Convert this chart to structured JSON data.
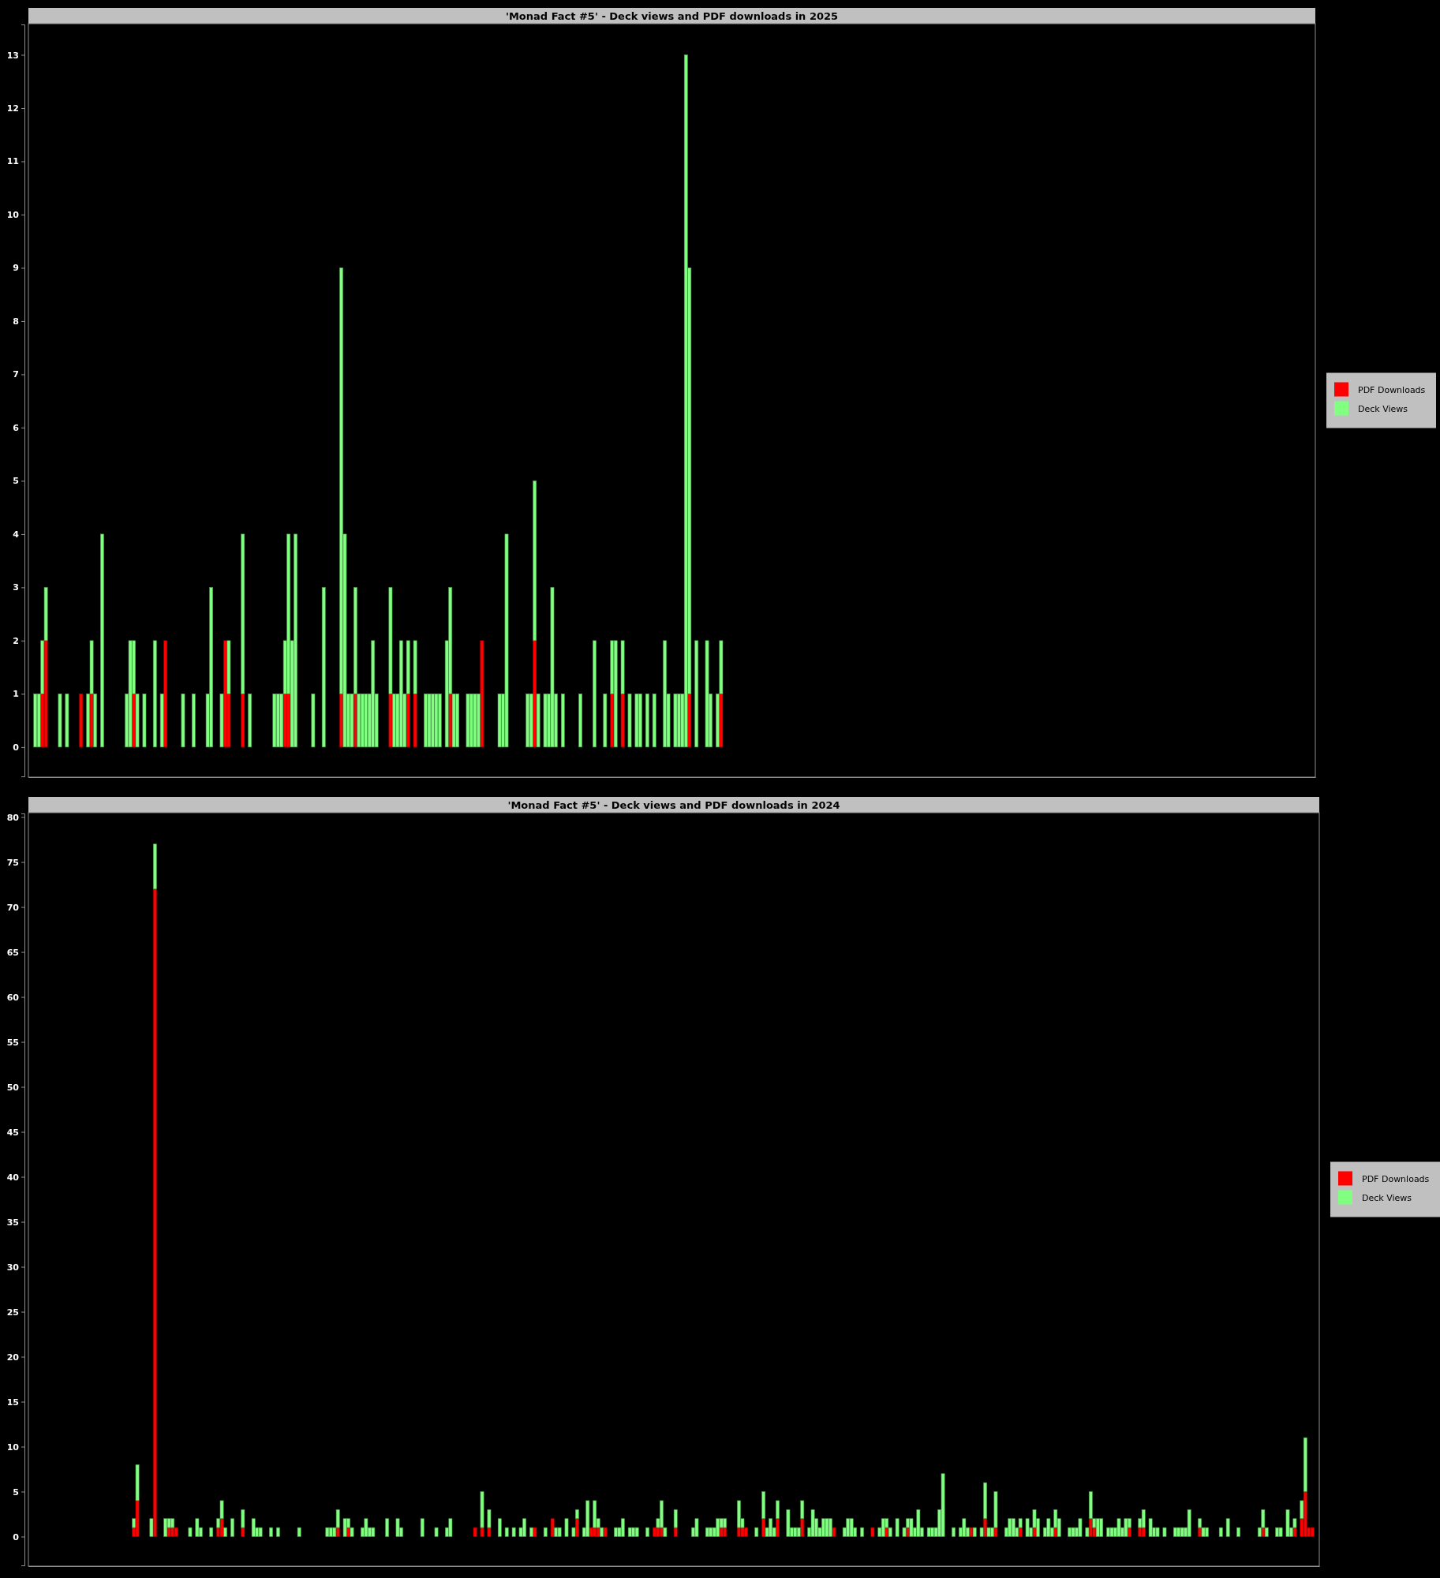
{
  "chart_data": [
    {
      "type": "bar",
      "title": "'Monad Fact #5' - Deck views and PDF downloads in 2025",
      "stacked": true,
      "legend": "right",
      "tick_labels": "y",
      "categories": [
        null,
        null,
        null,
        null,
        null,
        null,
        null,
        null,
        null,
        null,
        null,
        null,
        null,
        null,
        null,
        null,
        null,
        null,
        null,
        null,
        null,
        null,
        null,
        null,
        null,
        null,
        null,
        null,
        null,
        null,
        null,
        null,
        null,
        null,
        null,
        null,
        null,
        null,
        null,
        null,
        null,
        null,
        null,
        null,
        null,
        null,
        null,
        null,
        null,
        null,
        null,
        null,
        null,
        null,
        null,
        null,
        null,
        null,
        null,
        null,
        null,
        null,
        null,
        null,
        null,
        null,
        null,
        null,
        null,
        null,
        null,
        null,
        null,
        null,
        null,
        null,
        null,
        null,
        null,
        null,
        null,
        null,
        null,
        null,
        null,
        null,
        null,
        null,
        null,
        null,
        null,
        null,
        null,
        null,
        null,
        null,
        null,
        null,
        null,
        null,
        null,
        null,
        null,
        null,
        null,
        null,
        null,
        null,
        null,
        null,
        null,
        null,
        null,
        null,
        null,
        null,
        null,
        null,
        null,
        null,
        null,
        null,
        null,
        null,
        null,
        null,
        null,
        null,
        null,
        null,
        null,
        null,
        null,
        null,
        null,
        null,
        null,
        null,
        null,
        null,
        null,
        null,
        null,
        null,
        null,
        null,
        null,
        null,
        null,
        null,
        null,
        null,
        null,
        null,
        null,
        null,
        null,
        null,
        null,
        null,
        null,
        null,
        null,
        null,
        null,
        null,
        null,
        null,
        null,
        null,
        null,
        null,
        null,
        null,
        null,
        null,
        null,
        null,
        null,
        null,
        null,
        null,
        null,
        null,
        null,
        null,
        null,
        null,
        null,
        null,
        null,
        null,
        null,
        null,
        null,
        null,
        null,
        null,
        null,
        null,
        null,
        null,
        null,
        null,
        null,
        null,
        null,
        null,
        null,
        null,
        null,
        null,
        null,
        null,
        null,
        null,
        null,
        null,
        null,
        null,
        null,
        null,
        null,
        null,
        null,
        null,
        null,
        null,
        null,
        null,
        null,
        null,
        null,
        null,
        null,
        null,
        null,
        null,
        null,
        null,
        null,
        null,
        null,
        null,
        null,
        null,
        null,
        null,
        null,
        null,
        null,
        null,
        null,
        null,
        null,
        null,
        null,
        null,
        null,
        null,
        null,
        null,
        null,
        null,
        null,
        null,
        null,
        null,
        null,
        null,
        null,
        null,
        null,
        null,
        null,
        null,
        null,
        null,
        null,
        null,
        null,
        null,
        null,
        null,
        null,
        null,
        null,
        null,
        null,
        null,
        null,
        null,
        null,
        null,
        null,
        null,
        null,
        null,
        null,
        null,
        null,
        null,
        null,
        null,
        null,
        null,
        null,
        null,
        null,
        null,
        null,
        null,
        null,
        null,
        null,
        null,
        null,
        null,
        null,
        null,
        null,
        null,
        null,
        null,
        null,
        null,
        null,
        null,
        null,
        null,
        null,
        null,
        null,
        null,
        null,
        null,
        null,
        null,
        null,
        null,
        null,
        null,
        null,
        null,
        null,
        null,
        null,
        null,
        null,
        null,
        null,
        null,
        null,
        null,
        null,
        null,
        null,
        null,
        null,
        null,
        null,
        null,
        null,
        null,
        null
      ],
      "series": [
        {
          "name": "PDF Downloads",
          "color": "#ff0000",
          "values": [
            0,
            0,
            0,
            1,
            2,
            0,
            0,
            0,
            0,
            0,
            0,
            0,
            0,
            0,
            1,
            0,
            0,
            1,
            0,
            0,
            0,
            0,
            0,
            0,
            0,
            0,
            0,
            0,
            0,
            1,
            0,
            0,
            0,
            0,
            0,
            0,
            0,
            0,
            2,
            0,
            0,
            0,
            0,
            0,
            0,
            0,
            0,
            0,
            0,
            0,
            0,
            0,
            0,
            0,
            0,
            2,
            1,
            0,
            0,
            0,
            1,
            0,
            0,
            0,
            0,
            0,
            0,
            0,
            0,
            0,
            0,
            0,
            1,
            1,
            0,
            0,
            0,
            0,
            0,
            0,
            0,
            0,
            0,
            0,
            0,
            0,
            0,
            0,
            1,
            0,
            0,
            0,
            1,
            0,
            0,
            0,
            0,
            0,
            0,
            0,
            0,
            0,
            1,
            0,
            0,
            0,
            0,
            1,
            0,
            1,
            0,
            0,
            0,
            0,
            0,
            0,
            0,
            0,
            0,
            1,
            0,
            0,
            0,
            0,
            0,
            0,
            0,
            0,
            2,
            0,
            0,
            0,
            0,
            0,
            0,
            0,
            0,
            0,
            0,
            0,
            0,
            0,
            0,
            2,
            0,
            0,
            0,
            0,
            0,
            0,
            0,
            0,
            0,
            0,
            0,
            0,
            0,
            0,
            0,
            0,
            0,
            0,
            0,
            0,
            0,
            1,
            0,
            0,
            1,
            0,
            0,
            0,
            0,
            0,
            0,
            0,
            0,
            0,
            0,
            0,
            0,
            0,
            0,
            0,
            0,
            0,
            0,
            1,
            0,
            0,
            0,
            0,
            0,
            0,
            0,
            0,
            1,
            0,
            0,
            0,
            0,
            0,
            0,
            0,
            0,
            0,
            0,
            0,
            0,
            0,
            0,
            0,
            0,
            0,
            0,
            0,
            0,
            0,
            0,
            0,
            0,
            0,
            0,
            0,
            0,
            0,
            0,
            0,
            0,
            0,
            0,
            0,
            0,
            0,
            0,
            0,
            0,
            0,
            0,
            0,
            0,
            0,
            0,
            0,
            0,
            0,
            0,
            0,
            0,
            0,
            0,
            0,
            0,
            0,
            0,
            0,
            0,
            0,
            0,
            0,
            0,
            0,
            0,
            0,
            0,
            0,
            0,
            0,
            0,
            0,
            0,
            0,
            0,
            0,
            0,
            0,
            0,
            0,
            0,
            0,
            0,
            0,
            0,
            0,
            0,
            0,
            0,
            0,
            0,
            0,
            0,
            0,
            0,
            0,
            0,
            0,
            0,
            0,
            0,
            0,
            0,
            0,
            0,
            0,
            0,
            0,
            0,
            0,
            0,
            0,
            0,
            0,
            0,
            0,
            0,
            0,
            0,
            0,
            0,
            0,
            0,
            0,
            0,
            0,
            0,
            0,
            0,
            0,
            0,
            0,
            0,
            0,
            0,
            0,
            0,
            0,
            0,
            0,
            0,
            0,
            0,
            0,
            0,
            0,
            0,
            0,
            0,
            0,
            0,
            0,
            0,
            0,
            0,
            0,
            0,
            0,
            0,
            0,
            0,
            0,
            0,
            0,
            0,
            0,
            0
          ]
        },
        {
          "name": "Deck Views",
          "color": "#80ff80",
          "values": [
            0,
            1,
            1,
            1,
            1,
            0,
            0,
            0,
            1,
            0,
            1,
            0,
            0,
            0,
            0,
            0,
            1,
            1,
            1,
            0,
            4,
            0,
            0,
            0,
            0,
            0,
            0,
            1,
            2,
            1,
            1,
            0,
            1,
            0,
            0,
            2,
            0,
            1,
            0,
            0,
            0,
            0,
            0,
            1,
            0,
            0,
            1,
            0,
            0,
            0,
            1,
            3,
            0,
            0,
            1,
            0,
            1,
            0,
            0,
            0,
            3,
            0,
            1,
            0,
            0,
            0,
            0,
            0,
            0,
            1,
            1,
            1,
            1,
            3,
            2,
            4,
            0,
            0,
            0,
            0,
            1,
            0,
            0,
            3,
            0,
            0,
            0,
            0,
            8,
            4,
            1,
            1,
            2,
            1,
            1,
            1,
            1,
            2,
            1,
            0,
            0,
            0,
            2,
            1,
            1,
            2,
            1,
            1,
            0,
            1,
            0,
            0,
            1,
            1,
            1,
            1,
            1,
            0,
            2,
            2,
            1,
            1,
            0,
            0,
            1,
            1,
            1,
            1,
            0,
            0,
            0,
            0,
            0,
            1,
            1,
            4,
            0,
            0,
            0,
            0,
            0,
            1,
            1,
            3,
            1,
            0,
            1,
            1,
            3,
            1,
            0,
            1,
            0,
            0,
            0,
            0,
            1,
            0,
            0,
            0,
            2,
            0,
            0,
            1,
            0,
            1,
            2,
            0,
            1,
            0,
            1,
            0,
            1,
            1,
            0,
            1,
            0,
            1,
            0,
            0,
            2,
            1,
            0,
            1,
            1,
            1,
            13,
            8,
            0,
            2,
            0,
            0,
            2,
            1,
            0,
            1,
            1,
            0,
            0,
            0,
            0,
            0,
            0,
            0,
            0,
            0,
            0,
            0,
            0,
            0,
            0,
            0,
            0,
            0,
            0,
            0,
            0,
            0,
            0,
            0,
            0,
            0,
            0,
            0,
            0,
            0,
            0,
            0,
            0,
            0,
            0,
            0,
            0,
            0,
            0,
            0,
            0,
            0,
            0,
            0,
            0,
            0,
            0,
            0,
            0,
            0,
            0,
            0,
            0,
            0,
            0,
            0,
            0,
            0,
            0,
            0,
            0,
            0,
            0,
            0,
            0,
            0,
            0,
            0,
            0,
            0,
            0,
            0,
            0,
            0,
            0,
            0,
            0,
            0,
            0,
            0,
            0,
            0,
            0,
            0,
            0,
            0,
            0,
            0,
            0,
            0,
            0,
            0,
            0,
            0,
            0,
            0,
            0,
            0,
            0,
            0,
            0,
            0,
            0,
            0,
            0,
            0,
            0,
            0,
            0,
            0,
            0,
            0,
            0,
            0,
            0,
            0,
            0,
            0,
            0,
            0,
            0,
            0,
            0,
            0,
            0,
            0,
            0,
            0,
            0,
            0,
            0,
            0,
            0,
            0,
            0,
            0,
            0,
            0,
            0,
            0,
            0,
            0,
            0,
            0,
            0,
            0,
            0,
            0,
            0,
            0,
            0,
            0,
            0,
            0,
            0,
            0,
            0,
            0,
            0,
            0,
            0,
            0,
            0,
            0,
            0,
            0,
            0,
            0,
            0
          ]
        }
      ],
      "ylim": [
        -0.55,
        13.57
      ],
      "yticks": [
        0,
        1,
        2,
        3,
        4,
        5,
        6,
        7,
        8,
        9,
        10,
        11,
        12,
        13
      ]
    },
    {
      "type": "bar",
      "title": "'Monad Fact #5' - Deck views and PDF downloads in 2024",
      "stacked": true,
      "legend": "right",
      "tick_labels": "y",
      "categories": [
        null,
        null,
        null,
        null,
        null,
        null,
        null,
        null,
        null,
        null,
        null,
        null,
        null,
        null,
        null,
        null,
        null,
        null,
        null,
        null,
        null,
        null,
        null,
        null,
        null,
        null,
        null,
        null,
        null,
        null,
        null,
        null,
        null,
        null,
        null,
        null,
        null,
        null,
        null,
        null,
        null,
        null,
        null,
        null,
        null,
        null,
        null,
        null,
        null,
        null,
        null,
        null,
        null,
        null,
        null,
        null,
        null,
        null,
        null,
        null,
        null,
        null,
        null,
        null,
        null,
        null,
        null,
        null,
        null,
        null,
        null,
        null,
        null,
        null,
        null,
        null,
        null,
        null,
        null,
        null,
        null,
        null,
        null,
        null,
        null,
        null,
        null,
        null,
        null,
        null,
        null,
        null,
        null,
        null,
        null,
        null,
        null,
        null,
        null,
        null,
        null,
        null,
        null,
        null,
        null,
        null,
        null,
        null,
        null,
        null,
        null,
        null,
        null,
        null,
        null,
        null,
        null,
        null,
        null,
        null,
        null,
        null,
        null,
        null,
        null,
        null,
        null,
        null,
        null,
        null,
        null,
        null,
        null,
        null,
        null,
        null,
        null,
        null,
        null,
        null,
        null,
        null,
        null,
        null,
        null,
        null,
        null,
        null,
        null,
        null,
        null,
        null,
        null,
        null,
        null,
        null,
        null,
        null,
        null,
        null,
        null,
        null,
        null,
        null,
        null,
        null,
        null,
        null,
        null,
        null,
        null,
        null,
        null,
        null,
        null,
        null,
        null,
        null,
        null,
        null,
        null,
        null,
        null,
        null,
        null,
        null,
        null,
        null,
        null,
        null,
        null,
        null,
        null,
        null,
        null,
        null,
        null,
        null,
        null,
        null,
        null,
        null,
        null,
        null,
        null,
        null,
        null,
        null,
        null,
        null,
        null,
        null,
        null,
        null,
        null,
        null,
        null,
        null,
        null,
        null,
        null,
        null,
        null,
        null,
        null,
        null,
        null,
        null,
        null,
        null,
        null,
        null,
        null,
        null,
        null,
        null,
        null,
        null,
        null,
        null,
        null,
        null,
        null,
        null,
        null,
        null,
        null,
        null,
        null,
        null,
        null,
        null,
        null,
        null,
        null,
        null,
        null,
        null,
        null,
        null,
        null,
        null,
        null,
        null,
        null,
        null,
        null,
        null,
        null,
        null,
        null,
        null,
        null,
        null,
        null,
        null,
        null,
        null,
        null,
        null,
        null,
        null,
        null,
        null,
        null,
        null,
        null,
        null,
        null,
        null,
        null,
        null,
        null,
        null,
        null,
        null,
        null,
        null,
        null,
        null,
        null,
        null,
        null,
        null,
        null,
        null,
        null,
        null,
        null,
        null,
        null,
        null,
        null,
        null,
        null,
        null,
        null,
        null,
        null,
        null,
        null,
        null,
        null,
        null,
        null,
        null,
        null,
        null,
        null,
        null,
        null,
        null,
        null,
        null,
        null,
        null,
        null,
        null,
        null,
        null,
        null,
        null,
        null,
        null,
        null,
        null,
        null,
        null,
        null,
        null,
        null,
        null,
        null,
        null,
        null,
        null,
        null,
        null,
        null,
        null,
        null,
        null,
        null,
        null,
        null,
        null
      ],
      "series": [
        {
          "name": "PDF Downloads",
          "color": "#ff0000",
          "values": [
            0,
            0,
            0,
            0,
            0,
            0,
            0,
            0,
            0,
            0,
            0,
            0,
            0,
            0,
            0,
            0,
            0,
            0,
            0,
            0,
            0,
            0,
            0,
            0,
            0,
            0,
            0,
            0,
            0,
            1,
            4,
            0,
            0,
            0,
            0,
            72,
            0,
            0,
            0,
            1,
            1,
            1,
            0,
            0,
            0,
            0,
            0,
            0,
            0,
            0,
            0,
            0,
            0,
            1,
            2,
            0,
            0,
            0,
            0,
            0,
            1,
            0,
            0,
            0,
            0,
            0,
            0,
            0,
            0,
            0,
            0,
            0,
            0,
            0,
            0,
            0,
            0,
            0,
            0,
            0,
            0,
            0,
            0,
            0,
            0,
            0,
            0,
            1,
            0,
            0,
            1,
            0,
            0,
            0,
            0,
            0,
            0,
            0,
            0,
            0,
            0,
            0,
            0,
            0,
            0,
            0,
            0,
            0,
            0,
            0,
            0,
            0,
            0,
            0,
            0,
            0,
            0,
            0,
            0,
            0,
            0,
            0,
            0,
            0,
            0,
            0,
            1,
            0,
            1,
            0,
            1,
            0,
            0,
            0,
            0,
            0,
            0,
            0,
            0,
            0,
            0,
            0,
            0,
            1,
            0,
            0,
            0,
            0,
            2,
            0,
            0,
            0,
            0,
            0,
            0,
            2,
            0,
            0,
            0,
            1,
            1,
            1,
            0,
            1,
            0,
            0,
            0,
            0,
            0,
            0,
            0,
            0,
            0,
            0,
            0,
            0,
            0,
            1,
            1,
            1,
            0,
            0,
            0,
            1,
            0,
            0,
            0,
            0,
            0,
            0,
            0,
            0,
            0,
            0,
            0,
            0,
            1,
            1,
            0,
            0,
            0,
            1,
            1,
            1,
            0,
            0,
            0,
            0,
            2,
            0,
            0,
            0,
            2,
            0,
            0,
            0,
            0,
            0,
            0,
            2,
            0,
            0,
            0,
            0,
            0,
            0,
            0,
            0,
            1,
            0,
            0,
            0,
            0,
            0,
            0,
            0,
            0,
            0,
            0,
            1,
            0,
            0,
            0,
            1,
            0,
            0,
            0,
            0,
            0,
            1,
            0,
            0,
            0,
            0,
            0,
            0,
            0,
            0,
            0,
            0,
            0,
            0,
            0,
            0,
            0,
            0,
            0,
            1,
            0,
            0,
            0,
            2,
            0,
            0,
            1,
            0,
            0,
            0,
            0,
            0,
            0,
            1,
            0,
            0,
            0,
            1,
            0,
            0,
            0,
            0,
            0,
            1,
            0,
            0,
            0,
            0,
            0,
            0,
            0,
            0,
            0,
            2,
            1,
            0,
            0,
            0,
            0,
            0,
            0,
            0,
            0,
            0,
            1,
            0,
            0,
            1,
            1,
            0,
            0,
            0,
            0,
            0,
            0,
            0,
            0,
            0,
            0,
            0,
            0,
            0,
            0,
            0,
            1,
            0,
            0,
            0,
            0,
            0,
            0,
            0,
            0,
            0,
            0,
            0,
            0,
            0,
            0,
            0,
            0,
            0,
            1,
            0,
            0,
            0,
            0,
            0,
            0,
            0,
            0,
            1,
            0,
            2,
            5,
            1,
            1,
            0
          ]
        },
        {
          "name": "Deck Views",
          "color": "#80ff80",
          "values": [
            0,
            0,
            0,
            0,
            0,
            0,
            0,
            0,
            0,
            0,
            0,
            0,
            0,
            0,
            0,
            0,
            0,
            0,
            0,
            0,
            0,
            0,
            0,
            0,
            0,
            0,
            0,
            0,
            0,
            1,
            4,
            0,
            0,
            0,
            2,
            5,
            0,
            0,
            2,
            1,
            1,
            0,
            0,
            0,
            0,
            1,
            0,
            2,
            1,
            0,
            0,
            1,
            0,
            1,
            2,
            1,
            0,
            2,
            0,
            0,
            2,
            0,
            0,
            2,
            1,
            1,
            0,
            0,
            1,
            0,
            1,
            0,
            0,
            0,
            0,
            0,
            1,
            0,
            0,
            0,
            0,
            0,
            0,
            0,
            1,
            1,
            1,
            2,
            0,
            2,
            1,
            1,
            0,
            0,
            1,
            2,
            1,
            1,
            0,
            0,
            0,
            2,
            0,
            0,
            2,
            1,
            0,
            0,
            0,
            0,
            0,
            2,
            0,
            0,
            0,
            1,
            0,
            0,
            1,
            2,
            0,
            0,
            0,
            0,
            0,
            0,
            0,
            0,
            4,
            0,
            2,
            0,
            0,
            2,
            0,
            1,
            0,
            1,
            0,
            1,
            2,
            0,
            1,
            0,
            0,
            0,
            1,
            0,
            0,
            1,
            1,
            0,
            2,
            0,
            1,
            1,
            0,
            1,
            4,
            0,
            3,
            1,
            1,
            0,
            0,
            0,
            1,
            1,
            2,
            0,
            1,
            1,
            1,
            0,
            0,
            1,
            0,
            0,
            1,
            3,
            1,
            0,
            0,
            2,
            0,
            0,
            0,
            0,
            1,
            2,
            0,
            0,
            1,
            1,
            1,
            2,
            1,
            1,
            0,
            0,
            0,
            3,
            1,
            0,
            0,
            0,
            1,
            0,
            3,
            1,
            2,
            1,
            2,
            0,
            0,
            3,
            1,
            1,
            1,
            2,
            0,
            1,
            3,
            2,
            1,
            2,
            2,
            2,
            0,
            0,
            0,
            1,
            2,
            2,
            1,
            0,
            1,
            0,
            0,
            0,
            0,
            1,
            2,
            1,
            1,
            0,
            2,
            0,
            1,
            1,
            2,
            1,
            3,
            1,
            0,
            1,
            1,
            1,
            3,
            7,
            0,
            0,
            1,
            0,
            1,
            2,
            1,
            0,
            1,
            0,
            1,
            4,
            1,
            1,
            4,
            0,
            0,
            1,
            2,
            2,
            1,
            1,
            0,
            2,
            1,
            2,
            2,
            0,
            1,
            2,
            1,
            2,
            2,
            0,
            0,
            1,
            1,
            1,
            2,
            0,
            1,
            3,
            1,
            2,
            2,
            0,
            1,
            1,
            1,
            2,
            1,
            2,
            1,
            0,
            0,
            1,
            2,
            0,
            2,
            1,
            1,
            0,
            1,
            0,
            0,
            1,
            1,
            1,
            1,
            3,
            0,
            0,
            1,
            1,
            1,
            0,
            0,
            0,
            1,
            0,
            2,
            0,
            0,
            1,
            0,
            0,
            0,
            0,
            0,
            1,
            2,
            1,
            0,
            0,
            1,
            1,
            0,
            3,
            1,
            1,
            0,
            2,
            6,
            0,
            0,
            0
          ]
        }
      ],
      "ylim": [
        -3.2,
        80.4
      ],
      "yticks": [
        0,
        5,
        10,
        15,
        20,
        25,
        30,
        35,
        40,
        45,
        50,
        55,
        60,
        65,
        70,
        75,
        80
      ]
    }
  ]
}
